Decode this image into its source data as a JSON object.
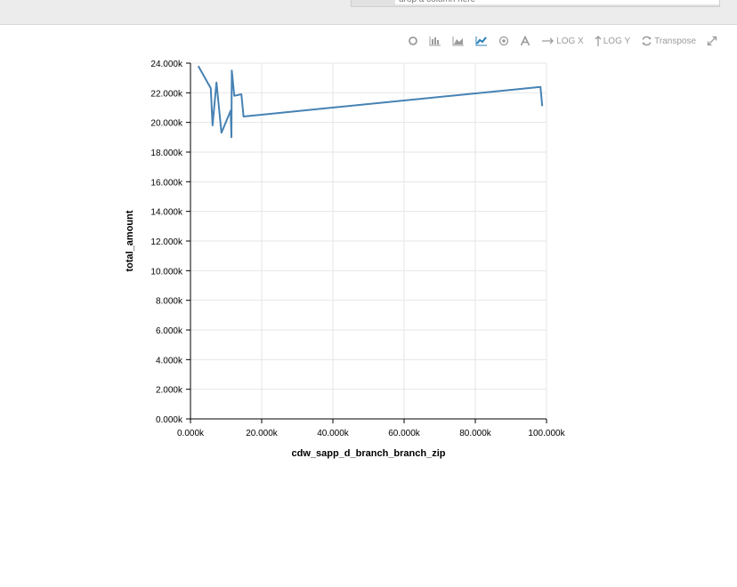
{
  "search": {
    "placeholder": "drop a column here"
  },
  "toolbar": {
    "logx_label": "LOG X",
    "logy_label": "LOG Y",
    "transpose_label": "Transpose"
  },
  "colors": {
    "line": "#4682b4",
    "active_icon": "#2a7fb8",
    "grid": "#e6e6e6"
  },
  "icons": [
    "circle-icon",
    "bar-chart-icon",
    "area-chart-icon",
    "line-chart-icon",
    "scatter-icon",
    "font-icon",
    "log-x-arrow-icon",
    "log-y-arrow-icon",
    "transpose-icon",
    "expand-icon"
  ],
  "chart_data": {
    "type": "line",
    "xlabel": "cdw_sapp_d_branch_branch_zip",
    "ylabel": "total_amount",
    "xlim": [
      0,
      100000
    ],
    "ylim": [
      0,
      24000
    ],
    "xticks": [
      "0.000k",
      "20.000k",
      "40.000k",
      "60.000k",
      "80.000k",
      "100.000k"
    ],
    "yticks": [
      "0.000k",
      "2.000k",
      "4.000k",
      "6.000k",
      "8.000k",
      "10.000k",
      "12.000k",
      "14.000k",
      "16.000k",
      "18.000k",
      "20.000k",
      "22.000k",
      "24.000k"
    ],
    "grid": true,
    "series": [
      {
        "points": [
          [
            2200,
            23800
          ],
          [
            5700,
            22300
          ],
          [
            6200,
            19800
          ],
          [
            7300,
            22700
          ],
          [
            8700,
            19300
          ],
          [
            11300,
            20800
          ],
          [
            11500,
            19000
          ],
          [
            11600,
            23500
          ],
          [
            12300,
            21800
          ],
          [
            14300,
            21900
          ],
          [
            14900,
            20400
          ],
          [
            98300,
            22400
          ],
          [
            98800,
            21100
          ]
        ]
      }
    ]
  }
}
